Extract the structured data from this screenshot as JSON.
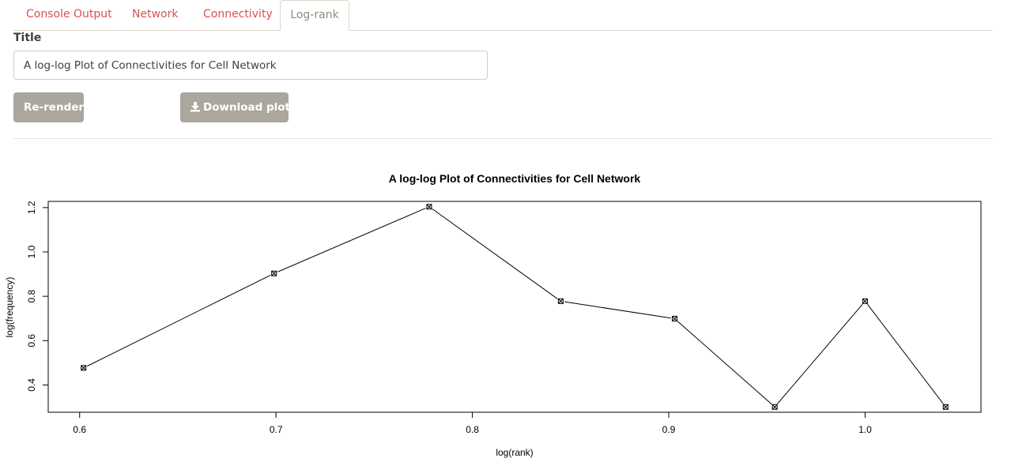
{
  "tabs": [
    {
      "label": "Console Output",
      "active": false
    },
    {
      "label": "Network",
      "active": false
    },
    {
      "label": "Connectivity",
      "active": false
    },
    {
      "label": "Log-rank",
      "active": true
    }
  ],
  "title_field": {
    "label": "Title",
    "value": "A log-log Plot of Connectivities for Cell Network"
  },
  "buttons": {
    "rerender": "Re-render",
    "download": "Download plot",
    "download_icon": "download-icon"
  },
  "colors": {
    "tab_link": "#d9534f",
    "tab_active": "#8e8c84",
    "button_bg": "#aba69e"
  },
  "chart_data": {
    "type": "line",
    "title": "A log-log Plot of Connectivities for Cell Network",
    "xlabel": "log(rank)",
    "ylabel": "log(frequency)",
    "x": [
      0.602,
      0.699,
      0.778,
      0.845,
      0.903,
      0.954,
      1.0,
      1.041
    ],
    "y": [
      0.477,
      0.903,
      1.204,
      0.778,
      0.699,
      0.301,
      0.778,
      0.301
    ],
    "xlim": [
      0.584,
      1.059
    ],
    "ylim": [
      0.277,
      1.228
    ],
    "xticks": [
      "0.6",
      "0.7",
      "0.8",
      "0.9",
      "1.0"
    ],
    "yticks": [
      "0.4",
      "0.6",
      "0.8",
      "1.0",
      "1.2"
    ],
    "marker": "boxed-x",
    "grid": false
  }
}
